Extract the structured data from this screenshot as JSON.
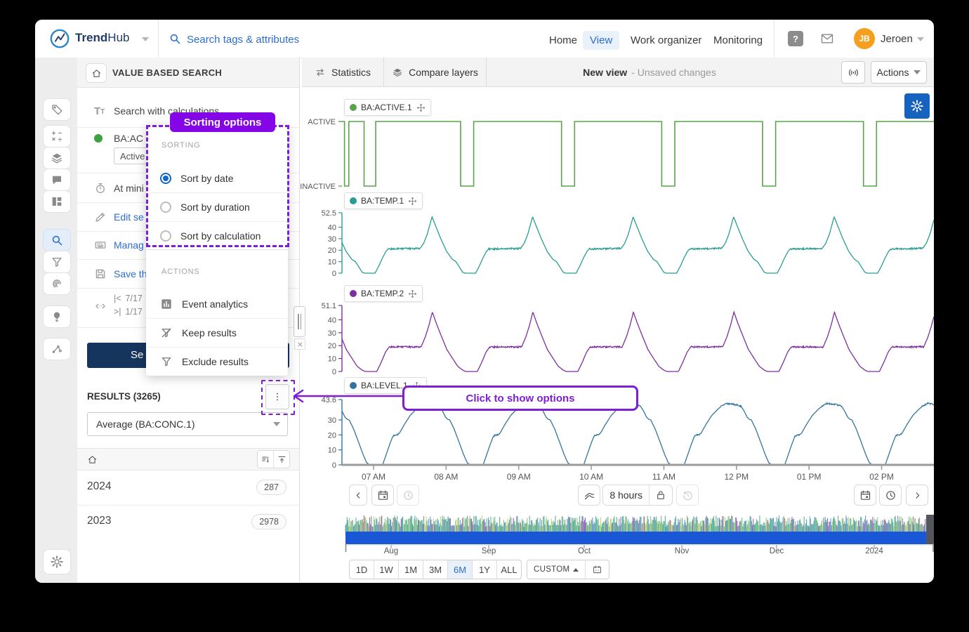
{
  "navbar": {
    "brand_trend": "Trend",
    "brand_hub": "Hub",
    "search_placeholder": "Search tags & attributes",
    "links": [
      {
        "label": "Home",
        "active": false
      },
      {
        "label": "View",
        "active": true
      },
      {
        "label": "Work organizer",
        "active": false
      },
      {
        "label": "Monitoring",
        "active": false
      }
    ],
    "help_glyph": "?",
    "user_initials": "JB",
    "user_name": "Jeroen"
  },
  "panel": {
    "title": "VALUE BASED SEARCH",
    "rows": {
      "search_calc": "Search with calculations",
      "tag": "BA:AC",
      "chip": "Active",
      "at_min": "At mini",
      "edit": "Edit se",
      "manage": "Manag",
      "save": "Save th"
    },
    "pagination": {
      "first_icon": "|<",
      "first": "7/17",
      "second_icon": ">|",
      "second": "1/17"
    },
    "search_button": "Se",
    "results_heading": "RESULTS (3265)",
    "aggregate": "Average (BA:CONC.1)",
    "years": [
      {
        "label": "2024",
        "count": "287"
      },
      {
        "label": "2023",
        "count": "2978"
      }
    ]
  },
  "popup": {
    "badge": "Sorting options",
    "sorting_header": "SORTING",
    "options": [
      {
        "label": "Sort by date",
        "selected": true
      },
      {
        "label": "Sort by duration",
        "selected": false
      },
      {
        "label": "Sort by calculation",
        "selected": false
      }
    ],
    "actions_header": "ACTIONS",
    "actions": [
      "Event analytics",
      "Keep results",
      "Exclude results"
    ]
  },
  "annotation": {
    "label": "Click to show options"
  },
  "toolbar": {
    "statistics": "Statistics",
    "compare_layers": "Compare layers",
    "view_name": "New view",
    "view_status": "- Unsaved changes",
    "actions_label": "Actions"
  },
  "timebar": {
    "duration": "8 hours"
  },
  "overview": {
    "months": [
      "Aug",
      "Sep",
      "Oct",
      "Nov",
      "Dec",
      "2024"
    ]
  },
  "ranges": {
    "buttons": [
      "1D",
      "1W",
      "1M",
      "3M",
      "6M",
      "1Y",
      "ALL"
    ],
    "active": "6M",
    "custom_label": "CUSTOM"
  },
  "colors": {
    "accent": "#2c6fd1",
    "purple": "#7d1fd3",
    "badge_purple": "#8405e6",
    "navy_button": "#16355e",
    "avatar_orange": "#f59f1e"
  },
  "chart_data": {
    "type": "line",
    "x_axis": {
      "labels": [
        "07 AM",
        "08 AM",
        "09 AM",
        "10 AM",
        "11 AM",
        "12 PM",
        "01 PM",
        "02 PM"
      ],
      "hours": [
        7,
        8,
        9,
        10,
        11,
        12,
        13,
        14
      ],
      "window_hours": [
        6.565,
        14.72
      ]
    },
    "series": [
      {
        "tag": "BA:ACTIVE.1",
        "color": "#5aa34d",
        "kind": "digital",
        "y_labels": [
          "ACTIVE",
          "INACTIVE"
        ],
        "low_intervals": [
          [
            6.6,
            6.66
          ],
          [
            6.87,
            7.03
          ],
          [
            8.2,
            8.38
          ],
          [
            9.59,
            9.77
          ],
          [
            10.97,
            11.15
          ],
          [
            12.36,
            12.54
          ],
          [
            13.75,
            13.93
          ]
        ]
      },
      {
        "tag": "BA:TEMP.1",
        "color": "#2a9d92",
        "kind": "analog",
        "y_max": 52.5,
        "y_max_label": "52.5",
        "y_ticks": [
          40,
          30,
          20,
          10,
          0
        ],
        "period_hours": 1.385,
        "peak_hour": 7.806,
        "peak_value": 49,
        "plateau_value": 21.5,
        "cycle": [
          [
            0,
            49
          ],
          [
            0.05,
            41
          ],
          [
            0.12,
            30
          ],
          [
            0.2,
            19
          ],
          [
            0.28,
            12
          ],
          [
            0.33,
            10
          ],
          [
            0.38,
            5
          ],
          [
            0.42,
            1
          ],
          [
            0.45,
            0
          ],
          [
            0.6,
            0
          ],
          [
            0.65,
            6
          ],
          [
            0.7,
            13
          ],
          [
            0.75,
            19
          ],
          [
            0.78,
            21
          ],
          [
            1.22,
            21.5
          ],
          [
            1.27,
            26
          ],
          [
            1.32,
            34
          ],
          [
            1.385,
            49
          ]
        ],
        "noise": [
          {
            "range": [
              0.78,
              1.22
            ],
            "amp": 0.7
          }
        ]
      },
      {
        "tag": "BA:TEMP.2",
        "color": "#7d2ea0",
        "kind": "analog",
        "y_max": 51.1,
        "y_max_label": "51.1",
        "y_ticks": [
          40,
          30,
          20,
          10,
          0
        ],
        "period_hours": 1.385,
        "peak_hour": 7.81,
        "peak_value": 46,
        "plateau_value": 19,
        "cycle": [
          [
            0,
            46
          ],
          [
            0.05,
            38
          ],
          [
            0.12,
            28
          ],
          [
            0.2,
            17
          ],
          [
            0.28,
            10
          ],
          [
            0.35,
            4
          ],
          [
            0.42,
            1
          ],
          [
            0.46,
            0
          ],
          [
            0.62,
            0
          ],
          [
            0.68,
            7
          ],
          [
            0.74,
            15
          ],
          [
            0.79,
            19
          ],
          [
            1.23,
            19
          ],
          [
            1.29,
            27
          ],
          [
            1.34,
            36
          ],
          [
            1.385,
            46
          ]
        ],
        "noise": [
          {
            "range": [
              0.79,
              1.23
            ],
            "amp": 0.6
          }
        ]
      },
      {
        "tag": "BA:LEVEL.1",
        "color": "#33749f",
        "kind": "analog",
        "y_max": 43.6,
        "y_max_label": "43.6",
        "y_ticks": [
          30,
          20,
          10,
          0
        ],
        "period_hours": 1.385,
        "peak_hour": 7.71,
        "peak_value": 41,
        "cycle": [
          [
            0,
            41
          ],
          [
            0.08,
            40.5
          ],
          [
            0.15,
            40
          ],
          [
            0.2,
            39
          ],
          [
            0.24,
            36
          ],
          [
            0.28,
            32
          ],
          [
            0.31,
            30.5
          ],
          [
            0.34,
            30
          ],
          [
            0.4,
            24
          ],
          [
            0.47,
            15
          ],
          [
            0.53,
            7
          ],
          [
            0.58,
            1.5
          ],
          [
            0.62,
            0
          ],
          [
            0.8,
            0
          ],
          [
            0.85,
            7
          ],
          [
            0.9,
            14
          ],
          [
            0.94,
            19
          ],
          [
            0.97,
            20
          ],
          [
            1.0,
            20
          ],
          [
            1.03,
            21
          ],
          [
            1.1,
            27
          ],
          [
            1.18,
            33
          ],
          [
            1.26,
            37
          ],
          [
            1.32,
            39.5
          ],
          [
            1.385,
            41
          ]
        ],
        "noise": [
          {
            "range": [
              0,
              0.2
            ],
            "amp": 0.45
          },
          {
            "range": [
              1.3,
              1.385
            ],
            "amp": 0.45
          },
          {
            "range": [
              0.94,
              1.03
            ],
            "amp": 0.4
          }
        ]
      }
    ]
  }
}
